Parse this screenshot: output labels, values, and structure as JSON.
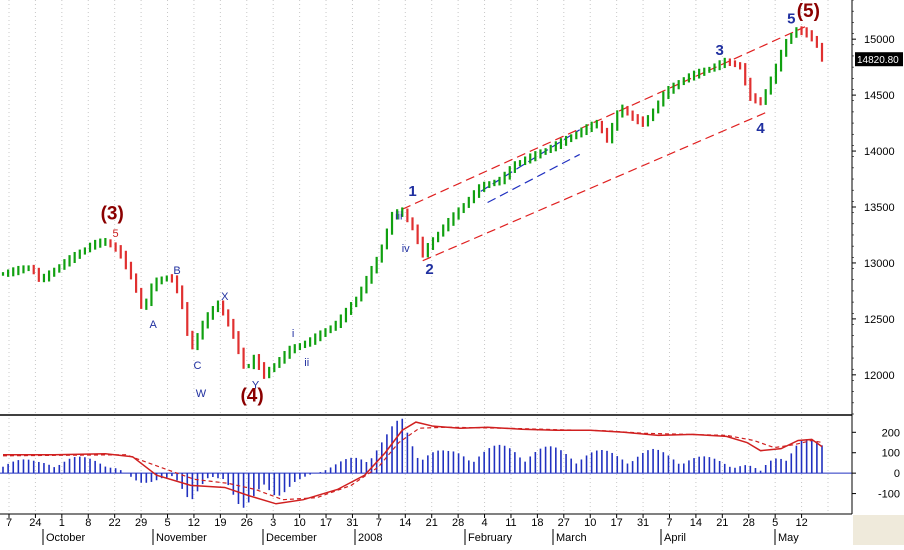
{
  "chart_data": {
    "type": "ohlc",
    "price_axis": {
      "min": 11650,
      "max": 15350,
      "ticks": [
        12000,
        12500,
        13000,
        13500,
        14000,
        14500,
        15000
      ]
    },
    "last_price_label": "14820.80",
    "x_day_labels": [
      "7",
      "24",
      "1",
      "8",
      "22",
      "29",
      "5",
      "12",
      "19",
      "26",
      "3",
      "10",
      "17",
      "31",
      "7",
      "14",
      "21",
      "28",
      "4",
      "11",
      "18",
      "27",
      "10",
      "17",
      "31",
      "7",
      "14",
      "21",
      "28",
      "5",
      "12"
    ],
    "x_month_labels": [
      "October",
      "November",
      "December",
      "2008",
      "February",
      "March",
      "April",
      "May"
    ],
    "price_path": [
      {
        "d": 0,
        "p": 12900
      },
      {
        "d": 8,
        "p": 12960
      },
      {
        "d": 11,
        "p": 12840
      },
      {
        "d": 18,
        "p": 13000
      },
      {
        "d": 26,
        "p": 13160
      },
      {
        "d": 30,
        "p": 13190
      },
      {
        "d": 34,
        "p": 13100
      },
      {
        "d": 38,
        "p": 12850
      },
      {
        "d": 41,
        "p": 12560
      },
      {
        "d": 44,
        "p": 12820
      },
      {
        "d": 49,
        "p": 12880
      },
      {
        "d": 52,
        "p": 12700
      },
      {
        "d": 55,
        "p": 12210
      },
      {
        "d": 59,
        "p": 12480
      },
      {
        "d": 63,
        "p": 12640
      },
      {
        "d": 67,
        "p": 12400
      },
      {
        "d": 71,
        "p": 12030
      },
      {
        "d": 74,
        "p": 12170
      },
      {
        "d": 76,
        "p": 11980
      },
      {
        "d": 80,
        "p": 12100
      },
      {
        "d": 84,
        "p": 12220
      },
      {
        "d": 90,
        "p": 12300
      },
      {
        "d": 98,
        "p": 12460
      },
      {
        "d": 104,
        "p": 12700
      },
      {
        "d": 110,
        "p": 13050
      },
      {
        "d": 114,
        "p": 13420
      },
      {
        "d": 117,
        "p": 13460
      },
      {
        "d": 120,
        "p": 13310
      },
      {
        "d": 123,
        "p": 13080
      },
      {
        "d": 128,
        "p": 13280
      },
      {
        "d": 134,
        "p": 13480
      },
      {
        "d": 140,
        "p": 13680
      },
      {
        "d": 146,
        "p": 13740
      },
      {
        "d": 150,
        "p": 13880
      },
      {
        "d": 156,
        "p": 13960
      },
      {
        "d": 162,
        "p": 14050
      },
      {
        "d": 168,
        "p": 14150
      },
      {
        "d": 174,
        "p": 14250
      },
      {
        "d": 177,
        "p": 14100
      },
      {
        "d": 181,
        "p": 14400
      },
      {
        "d": 184,
        "p": 14300
      },
      {
        "d": 188,
        "p": 14240
      },
      {
        "d": 194,
        "p": 14520
      },
      {
        "d": 200,
        "p": 14650
      },
      {
        "d": 206,
        "p": 14720
      },
      {
        "d": 212,
        "p": 14800
      },
      {
        "d": 216,
        "p": 14750
      },
      {
        "d": 219,
        "p": 14480
      },
      {
        "d": 222,
        "p": 14430
      },
      {
        "d": 226,
        "p": 14700
      },
      {
        "d": 229,
        "p": 14950
      },
      {
        "d": 232,
        "p": 15080
      },
      {
        "d": 235,
        "p": 15060
      },
      {
        "d": 238,
        "p": 14980
      },
      {
        "d": 240,
        "p": 14820
      }
    ],
    "trend_lines": [
      {
        "name": "upper-channel",
        "style": "dashed",
        "color": "#e02020",
        "from": {
          "d": 117,
          "p": 13480
        },
        "to": {
          "d": 235,
          "p": 15110
        }
      },
      {
        "name": "lower-channel",
        "style": "dashed",
        "color": "#e02020",
        "from": {
          "d": 123,
          "p": 13020
        },
        "to": {
          "d": 224,
          "p": 14350
        }
      },
      {
        "name": "inner-upper",
        "style": "dashed",
        "color": "#2030c0",
        "from": {
          "d": 140,
          "p": 13640
        },
        "to": {
          "d": 169,
          "p": 14190
        }
      },
      {
        "name": "inner-lower",
        "style": "dashed",
        "color": "#2030c0",
        "from": {
          "d": 142,
          "p": 13540
        },
        "to": {
          "d": 169,
          "p": 13970
        }
      }
    ],
    "wave_labels": [
      {
        "text": "(3)",
        "d": 32,
        "p": 13390,
        "color": "#8b0000",
        "size": "large"
      },
      {
        "text": "5",
        "d": 33,
        "p": 13230,
        "color": "#cc2020",
        "size": "small"
      },
      {
        "text": "A",
        "d": 44,
        "p": 12420,
        "color": "#2030a0",
        "size": "small"
      },
      {
        "text": "B",
        "d": 51,
        "p": 12900,
        "color": "#2030a0",
        "size": "small"
      },
      {
        "text": "C",
        "d": 57,
        "p": 12050,
        "color": "#2030a0",
        "size": "small"
      },
      {
        "text": "X",
        "d": 65,
        "p": 12670,
        "color": "#2030a0",
        "size": "small"
      },
      {
        "text": "W",
        "d": 58,
        "p": 11800,
        "color": "#2030a0",
        "size": "small"
      },
      {
        "text": "Y",
        "d": 74,
        "p": 11880,
        "color": "#2030a0",
        "size": "small"
      },
      {
        "text": "(4)",
        "d": 73,
        "p": 11760,
        "color": "#8b0000",
        "size": "large"
      },
      {
        "text": "i",
        "d": 85,
        "p": 12340,
        "color": "#2030a0",
        "size": "small"
      },
      {
        "text": "ii",
        "d": 89,
        "p": 12080,
        "color": "#2030a0",
        "size": "small"
      },
      {
        "text": "iii",
        "d": 116,
        "p": 13390,
        "color": "#2030a0",
        "size": "small"
      },
      {
        "text": "iv",
        "d": 118,
        "p": 13100,
        "color": "#2030a0",
        "size": "small"
      },
      {
        "text": "1",
        "d": 120,
        "p": 13600,
        "color": "#2030a0",
        "size": "medium"
      },
      {
        "text": "2",
        "d": 125,
        "p": 12900,
        "color": "#2030a0",
        "size": "medium"
      },
      {
        "text": "3",
        "d": 210,
        "p": 14860,
        "color": "#2030a0",
        "size": "medium"
      },
      {
        "text": "4",
        "d": 222,
        "p": 14160,
        "color": "#2030a0",
        "size": "medium"
      },
      {
        "text": "5",
        "d": 231,
        "p": 15140,
        "color": "#2030a0",
        "size": "medium"
      },
      {
        "text": "(5)",
        "d": 236,
        "p": 15200,
        "color": "#8b0000",
        "size": "large"
      }
    ],
    "oscillator": {
      "axis": {
        "min": -200,
        "max": 270,
        "ticks": [
          200,
          100,
          0,
          -100
        ]
      },
      "zero_line_color": "#2030c0",
      "histogram_color": "#2030c0",
      "line_color": "#d02020",
      "signal_color": "#d02020",
      "histogram": [
        {
          "d": 0,
          "v": 70
        },
        {
          "d": 10,
          "v": 50
        },
        {
          "d": 20,
          "v": 70
        },
        {
          "d": 30,
          "v": 60
        },
        {
          "d": 40,
          "v": -40
        },
        {
          "d": 45,
          "v": -60
        },
        {
          "d": 50,
          "v": -10
        },
        {
          "d": 55,
          "v": -120
        },
        {
          "d": 60,
          "v": -40
        },
        {
          "d": 65,
          "v": -30
        },
        {
          "d": 70,
          "v": -150
        },
        {
          "d": 75,
          "v": -120
        },
        {
          "d": 80,
          "v": -120
        },
        {
          "d": 85,
          "v": -40
        },
        {
          "d": 95,
          "v": 20
        },
        {
          "d": 105,
          "v": 90
        },
        {
          "d": 112,
          "v": 160
        },
        {
          "d": 117,
          "v": 240
        },
        {
          "d": 122,
          "v": 120
        },
        {
          "d": 130,
          "v": 90
        },
        {
          "d": 140,
          "v": 110
        },
        {
          "d": 150,
          "v": 120
        },
        {
          "d": 160,
          "v": 110
        },
        {
          "d": 170,
          "v": 100
        },
        {
          "d": 180,
          "v": 90
        },
        {
          "d": 190,
          "v": 100
        },
        {
          "d": 200,
          "v": 80
        },
        {
          "d": 210,
          "v": 60
        },
        {
          "d": 218,
          "v": 40
        },
        {
          "d": 222,
          "v": 10
        },
        {
          "d": 228,
          "v": 110
        },
        {
          "d": 233,
          "v": 150
        },
        {
          "d": 236,
          "v": 140
        },
        {
          "d": 240,
          "v": 130
        }
      ],
      "line": [
        {
          "d": 0,
          "v": 90
        },
        {
          "d": 15,
          "v": 90
        },
        {
          "d": 30,
          "v": 95
        },
        {
          "d": 38,
          "v": 80
        },
        {
          "d": 45,
          "v": -10
        },
        {
          "d": 55,
          "v": -60
        },
        {
          "d": 65,
          "v": -70
        },
        {
          "d": 72,
          "v": -110
        },
        {
          "d": 80,
          "v": -150
        },
        {
          "d": 88,
          "v": -130
        },
        {
          "d": 98,
          "v": -80
        },
        {
          "d": 106,
          "v": -10
        },
        {
          "d": 112,
          "v": 100
        },
        {
          "d": 117,
          "v": 210
        },
        {
          "d": 121,
          "v": 250
        },
        {
          "d": 126,
          "v": 230
        },
        {
          "d": 134,
          "v": 220
        },
        {
          "d": 142,
          "v": 225
        },
        {
          "d": 152,
          "v": 215
        },
        {
          "d": 162,
          "v": 210
        },
        {
          "d": 172,
          "v": 210
        },
        {
          "d": 182,
          "v": 200
        },
        {
          "d": 192,
          "v": 185
        },
        {
          "d": 202,
          "v": 190
        },
        {
          "d": 212,
          "v": 180
        },
        {
          "d": 218,
          "v": 150
        },
        {
          "d": 222,
          "v": 110
        },
        {
          "d": 228,
          "v": 120
        },
        {
          "d": 233,
          "v": 160
        },
        {
          "d": 237,
          "v": 165
        },
        {
          "d": 240,
          "v": 130
        }
      ],
      "signal": [
        {
          "d": 0,
          "v": 85
        },
        {
          "d": 20,
          "v": 88
        },
        {
          "d": 36,
          "v": 90
        },
        {
          "d": 46,
          "v": 30
        },
        {
          "d": 56,
          "v": -30
        },
        {
          "d": 66,
          "v": -50
        },
        {
          "d": 74,
          "v": -80
        },
        {
          "d": 82,
          "v": -130
        },
        {
          "d": 92,
          "v": -120
        },
        {
          "d": 102,
          "v": -60
        },
        {
          "d": 110,
          "v": 30
        },
        {
          "d": 116,
          "v": 150
        },
        {
          "d": 122,
          "v": 220
        },
        {
          "d": 130,
          "v": 225
        },
        {
          "d": 140,
          "v": 222
        },
        {
          "d": 152,
          "v": 218
        },
        {
          "d": 164,
          "v": 212
        },
        {
          "d": 176,
          "v": 208
        },
        {
          "d": 188,
          "v": 195
        },
        {
          "d": 200,
          "v": 190
        },
        {
          "d": 212,
          "v": 185
        },
        {
          "d": 220,
          "v": 160
        },
        {
          "d": 226,
          "v": 125
        },
        {
          "d": 232,
          "v": 140
        },
        {
          "d": 237,
          "v": 160
        },
        {
          "d": 240,
          "v": 150
        }
      ]
    },
    "colors": {
      "up_bar": "#10a010",
      "down_bar": "#e03030",
      "vertical_grid": "#c8c8c8",
      "axis": "#000000"
    }
  }
}
